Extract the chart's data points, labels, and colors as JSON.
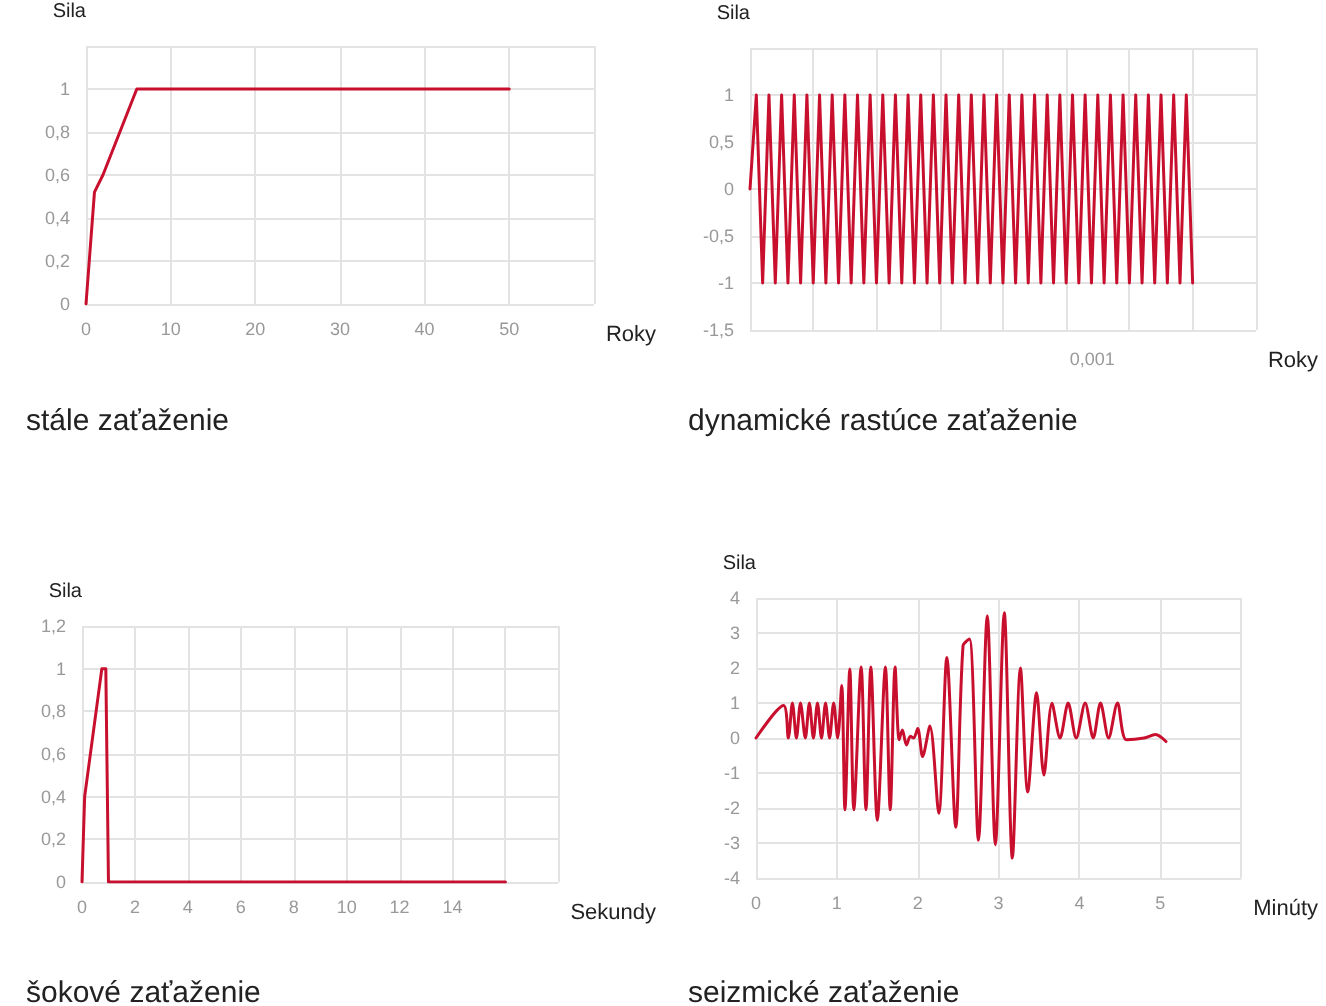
{
  "chart_data": [
    {
      "type": "line",
      "title": "stále zaťaženie",
      "xlabel": "Roky",
      "ylabel": "Sila",
      "color": "#c8102e",
      "grid": true,
      "marker": "none",
      "x": [
        0,
        1,
        2,
        6,
        6.5,
        50
      ],
      "values": [
        0,
        0.52,
        0.6,
        1,
        1,
        1
      ],
      "xlim": [
        0,
        60
      ],
      "xticks": [
        0,
        10,
        20,
        30,
        40,
        50,
        {
          "value": 60,
          "label": null
        }
      ],
      "ylim": [
        0,
        1.2
      ],
      "yticks": [
        0,
        {
          "value": 0.2,
          "label": "0,2"
        },
        {
          "value": 0.4,
          "label": "0,4"
        },
        {
          "value": 0.6,
          "label": "0,6"
        },
        {
          "value": 0.8,
          "label": "0,8"
        },
        1,
        {
          "value": 1.2,
          "label": null
        }
      ]
    },
    {
      "type": "line",
      "title": "dynamické rastúce zaťaženie",
      "xlabel": "Roky",
      "ylabel": "Sila",
      "color": "#c8102e",
      "grid": true,
      "marker": "none",
      "annotations": [
        "0,001"
      ],
      "categories": [
        null,
        null,
        null,
        null,
        null,
        null,
        null,
        null,
        null,
        null,
        null,
        null,
        null,
        null,
        null,
        null,
        null,
        null,
        null,
        null,
        null,
        null,
        null,
        null,
        null,
        null,
        null,
        null,
        null,
        null,
        null,
        null,
        null,
        null,
        null,
        null,
        null,
        null,
        null,
        null,
        null,
        null,
        null,
        null,
        null,
        null,
        null,
        null,
        null,
        null,
        null,
        null,
        null,
        null,
        null,
        null,
        null,
        null,
        null,
        null,
        null,
        null,
        null,
        null,
        null,
        null,
        null,
        null,
        null,
        null,
        null,
        null,
        null,
        null,
        null,
        null,
        null,
        null,
        null,
        null,
        null
      ],
      "values": [
        0,
        1,
        -1,
        1,
        -1,
        1,
        -1,
        1,
        -1,
        1,
        -1,
        1,
        -1,
        1,
        -1,
        1,
        -1,
        1,
        -1,
        1,
        -1,
        1,
        -1,
        1,
        -1,
        1,
        -1,
        1,
        -1,
        1,
        -1,
        1,
        -1,
        1,
        -1,
        1,
        -1,
        1,
        -1,
        1,
        -1,
        1,
        -1,
        1,
        -1,
        1,
        -1,
        1,
        -1,
        1,
        -1,
        1,
        -1,
        1,
        -1,
        1,
        -1,
        1,
        -1,
        1,
        -1,
        1,
        -1,
        1,
        -1,
        1,
        -1,
        1,
        -1,
        1,
        -1,
        null,
        null,
        null,
        null,
        null,
        null,
        null,
        null,
        null,
        null
      ],
      "ylim": [
        -1.5,
        1.5
      ],
      "yticks": [
        {
          "value": -1.5,
          "label": "-1,5"
        },
        -1,
        {
          "value": -0.5,
          "label": "-0,5"
        },
        0,
        {
          "value": 0.5,
          "label": "0,5"
        },
        1,
        {
          "value": 1.5,
          "label": null
        }
      ]
    },
    {
      "type": "line",
      "title": "šokové zaťaženie",
      "xlabel": "Sekundy",
      "ylabel": "Sila",
      "color": "#c8102e",
      "grid": true,
      "marker": "none",
      "x": [
        0,
        0.1,
        0.75,
        0.9,
        1,
        16
      ],
      "values": [
        0,
        0.4,
        1,
        1,
        0,
        0
      ],
      "xlim": [
        0,
        18
      ],
      "xticks": [
        0,
        2,
        4,
        6,
        8,
        10,
        12,
        14,
        {
          "value": 16,
          "label": null
        },
        {
          "value": 18,
          "label": null
        }
      ],
      "ylim": [
        0,
        1.2
      ],
      "yticks": [
        0,
        {
          "value": 0.2,
          "label": "0,2"
        },
        {
          "value": 0.4,
          "label": "0,4"
        },
        {
          "value": 0.6,
          "label": "0,6"
        },
        {
          "value": 0.8,
          "label": "0,8"
        },
        1,
        {
          "value": 1.2,
          "label": "1,2"
        }
      ]
    },
    {
      "type": "line",
      "title": "seizmické zaťaženie",
      "xlabel": "Minúty",
      "ylabel": "Sila",
      "color": "#c8102e",
      "grid": true,
      "marker": "none",
      "x": [
        0,
        0.34,
        0.4,
        0.45,
        0.5,
        0.55,
        0.61,
        0.66,
        0.71,
        0.76,
        0.81,
        0.86,
        0.91,
        0.96,
        1.01,
        1.06,
        1.1,
        1.16,
        1.21,
        1.3,
        1.36,
        1.42,
        1.5,
        1.6,
        1.66,
        1.72,
        1.77,
        1.81,
        1.86,
        1.91,
        1.95,
        2.0,
        2.06,
        2.15,
        2.26,
        2.36,
        2.47,
        2.56,
        2.64,
        2.75,
        2.86,
        2.96,
        3.07,
        3.17,
        3.27,
        3.36,
        3.47,
        3.56,
        3.66,
        3.76,
        3.86,
        3.96,
        4.07,
        4.17,
        4.26,
        4.36,
        4.47,
        4.58,
        4.8,
        4.94,
        5.07
      ],
      "values": [
        0,
        0.93,
        0,
        1,
        0,
        1,
        0,
        1,
        0,
        1,
        0,
        1,
        0,
        1,
        0,
        1.5,
        -2.05,
        1.97,
        -2.05,
        2.03,
        -2.05,
        2.03,
        -2.35,
        2.03,
        -2.05,
        2.03,
        -0.05,
        0.23,
        -0.2,
        0.05,
        0,
        0.27,
        -0.53,
        0.34,
        -2.15,
        2.3,
        -2.55,
        2.63,
        2.83,
        -2.92,
        3.49,
        -3.05,
        3.58,
        -3.43,
        2,
        -1.54,
        1.29,
        -1.06,
        0.99,
        0,
        1,
        0,
        1,
        0,
        1,
        0,
        1,
        -0.05,
        0,
        0.1,
        -0.1
      ],
      "xlim": [
        0,
        6
      ],
      "xticks": [
        0,
        1,
        2,
        3,
        4,
        5,
        {
          "value": 6,
          "label": null
        }
      ],
      "ylim": [
        -4,
        4
      ],
      "yticks": [
        -4,
        -3,
        -2,
        -1,
        0,
        1,
        2,
        3,
        4
      ]
    }
  ]
}
